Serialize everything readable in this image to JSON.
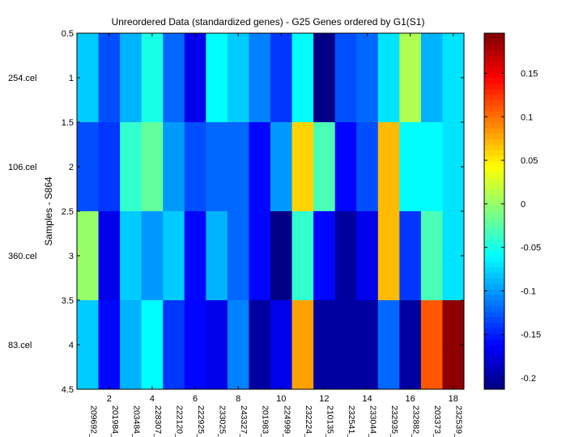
{
  "chart_data": {
    "type": "heatmap",
    "title": "Unreordered Data (standardized genes) - G25 Genes ordered by G1(S1)",
    "ylabel": "Samples - S864",
    "xlabel": "",
    "ylim": [
      4.5,
      0.5
    ],
    "xlim": [
      0.5,
      18.5
    ],
    "y_ticks": [
      "0.5",
      "1",
      "1.5",
      "2",
      "2.5",
      "3",
      "3.5",
      "4",
      "4.5"
    ],
    "x_ticks": [
      "2",
      "4",
      "6",
      "8",
      "10",
      "12",
      "14",
      "16",
      "18"
    ],
    "row_labels": [
      "254.cel",
      "106.cel",
      "360.cel",
      "83.cel"
    ],
    "col_labels": [
      "209692_",
      "201984_",
      "203484_",
      "228307_",
      "222120_",
      "222925_",
      "233025_",
      "243327_",
      "201983_",
      "224999_",
      "232224_",
      "210135_",
      "232541_",
      "233044_",
      "232935_",
      "232882_",
      "203373_",
      "232539_"
    ],
    "values": [
      [
        -0.08,
        -0.13,
        -0.09,
        -0.05,
        -0.12,
        -0.17,
        -0.06,
        -0.08,
        -0.11,
        -0.14,
        -0.06,
        -0.21,
        -0.13,
        -0.12,
        -0.07,
        0.01,
        -0.09,
        -0.07
      ],
      [
        -0.13,
        -0.14,
        -0.04,
        -0.02,
        -0.1,
        -0.13,
        -0.12,
        -0.12,
        -0.16,
        -0.1,
        0.06,
        -0.03,
        -0.16,
        -0.13,
        0.07,
        -0.06,
        -0.06,
        -0.07
      ],
      [
        0.0,
        -0.17,
        -0.08,
        -0.1,
        -0.08,
        -0.16,
        -0.09,
        -0.12,
        -0.16,
        -0.21,
        -0.04,
        -0.16,
        -0.2,
        -0.17,
        0.07,
        -0.14,
        -0.03,
        -0.07
      ],
      [
        -0.08,
        -0.16,
        -0.09,
        -0.06,
        -0.14,
        -0.16,
        -0.17,
        -0.11,
        -0.2,
        -0.17,
        0.08,
        -0.2,
        -0.2,
        -0.2,
        -0.12,
        -0.2,
        0.11,
        0.19
      ]
    ],
    "colorbar": {
      "vmin": -0.213,
      "vmax": 0.196,
      "ticks": [
        "0.15",
        "0.1",
        "0.05",
        "0",
        "-0.05",
        "-0.1",
        "-0.15",
        "-0.2"
      ],
      "colormap": "jet"
    }
  }
}
